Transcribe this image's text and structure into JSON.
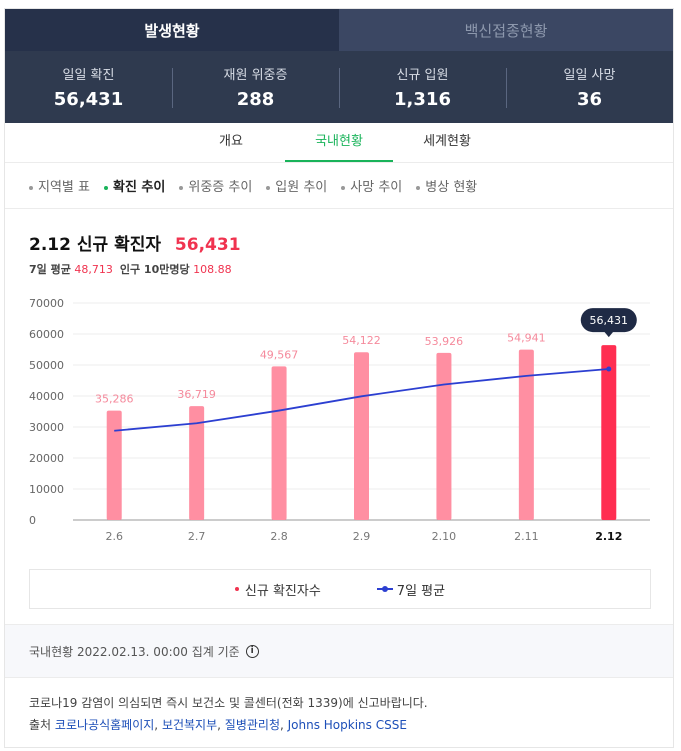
{
  "main_tabs": [
    "발생현황",
    "백신접종현황"
  ],
  "stats": [
    {
      "label": "일일 확진",
      "value": "56,431"
    },
    {
      "label": "재원 위중증",
      "value": "288"
    },
    {
      "label": "신규 입원",
      "value": "1,316"
    },
    {
      "label": "일일 사망",
      "value": "36"
    }
  ],
  "sub_tabs": [
    "개요",
    "국내현황",
    "세계현황"
  ],
  "filters": [
    "지역별 표",
    "확진 추이",
    "위중증 추이",
    "입원 추이",
    "사망 추이",
    "병상 현황"
  ],
  "headline": {
    "date": "2.12",
    "label": "신규 확진자",
    "value": "56,431"
  },
  "subline": {
    "avg_label": "7일 평균",
    "avg_value": "48,713",
    "pop_label": "인구 10만명당",
    "pop_value": "108.88"
  },
  "legend": {
    "bars": "신규 확진자수",
    "line": "7일 평균"
  },
  "basis": "국내현황 2022.02.13. 00:00 집계 기준",
  "notice": "코로나19 감염이 의심되면 즉시 보건소 및 콜센터(전화 1339)에 신고바랍니다.",
  "source_label": "출처",
  "sources": [
    "코로나공식홈페이지",
    "보건복지부",
    "질병관리청",
    "Johns Hopkins CSSE"
  ],
  "chart_data": {
    "type": "bar",
    "categories": [
      "2.6",
      "2.7",
      "2.8",
      "2.9",
      "2.10",
      "2.11",
      "2.12"
    ],
    "series": [
      {
        "name": "신규 확진자수",
        "type": "bar",
        "values": [
          35286,
          36719,
          49567,
          54122,
          53926,
          54941,
          56431
        ],
        "labels": [
          "35,286",
          "36,719",
          "49,567",
          "54,122",
          "53,926",
          "54,941",
          "56,431"
        ]
      },
      {
        "name": "7일 평균",
        "type": "line",
        "values": [
          28800,
          31200,
          35300,
          39900,
          43700,
          46500,
          48713
        ]
      }
    ],
    "yticks": [
      0,
      10000,
      20000,
      30000,
      40000,
      50000,
      60000,
      70000
    ],
    "ylim": [
      0,
      70000
    ],
    "grid": true,
    "colors": {
      "bar": "#ff8fa2",
      "bar_highlight": "#ff2e51",
      "line": "#2c3fd1",
      "label": "#f58a9c",
      "tooltip_bg": "#1f2a45"
    }
  }
}
